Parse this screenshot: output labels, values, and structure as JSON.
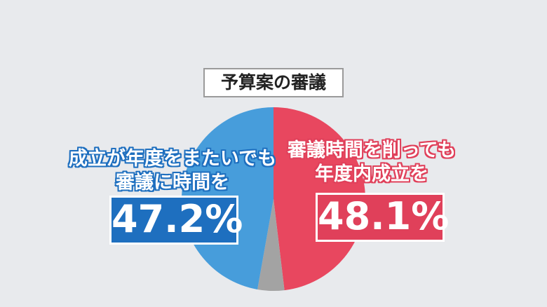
{
  "chart_data": {
    "type": "pie",
    "title": "予算案の審議",
    "categories": [
      "審議時間を削っても\n年度内成立を",
      null,
      "成立が年度をまたいでも\n審議に時間を"
    ],
    "values": [
      48.1,
      4.7,
      47.2
    ],
    "value_labels": [
      "48.1%",
      null,
      "47.2%"
    ],
    "colors": [
      "#e8475f",
      "#a3a3a3",
      "#479ddb"
    ],
    "label_colors": [
      "#e0405a",
      null,
      "#1e6fbf"
    ]
  }
}
